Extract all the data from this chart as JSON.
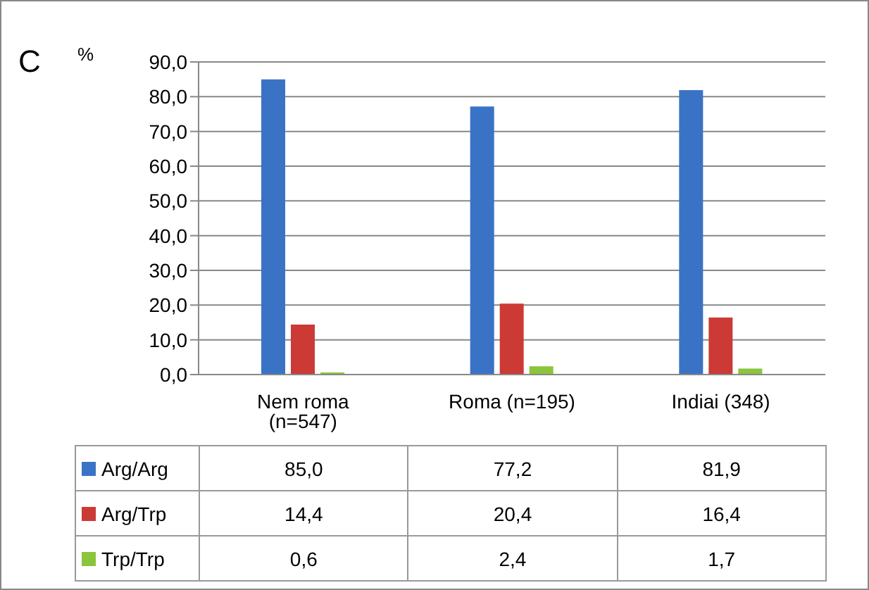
{
  "chart_data": {
    "type": "bar",
    "ylabel": "%",
    "annotations": [
      "C"
    ],
    "categories": [
      "Nem roma (n=547)",
      "Roma (n=195)",
      "Indiai (348)"
    ],
    "series": [
      {
        "name": "Arg/Arg",
        "color": "#3a73c6",
        "values": [
          85.0,
          77.2,
          81.9
        ],
        "value_labels": [
          "85,0",
          "77,2",
          "81,9"
        ]
      },
      {
        "name": "Arg/Trp",
        "color": "#cc3a36",
        "values": [
          14.4,
          20.4,
          16.4
        ],
        "value_labels": [
          "14,4",
          "20,4",
          "16,4"
        ]
      },
      {
        "name": "Trp/Trp",
        "color": "#8cc43c",
        "values": [
          0.6,
          2.4,
          1.7
        ],
        "value_labels": [
          "0,6",
          "2,4",
          "1,7"
        ]
      }
    ],
    "ylim": [
      0,
      90
    ],
    "yticks": [
      {
        "value": 0,
        "label": "0,0"
      },
      {
        "value": 10,
        "label": "10,0"
      },
      {
        "value": 20,
        "label": "20,0"
      },
      {
        "value": 30,
        "label": "30,0"
      },
      {
        "value": 40,
        "label": "40,0"
      },
      {
        "value": 50,
        "label": "50,0"
      },
      {
        "value": 60,
        "label": "60,0"
      },
      {
        "value": 70,
        "label": "70,0"
      },
      {
        "value": 80,
        "label": "80,0"
      },
      {
        "value": 90,
        "label": "90,0"
      }
    ],
    "grid": "y",
    "legend": "bottom left"
  }
}
